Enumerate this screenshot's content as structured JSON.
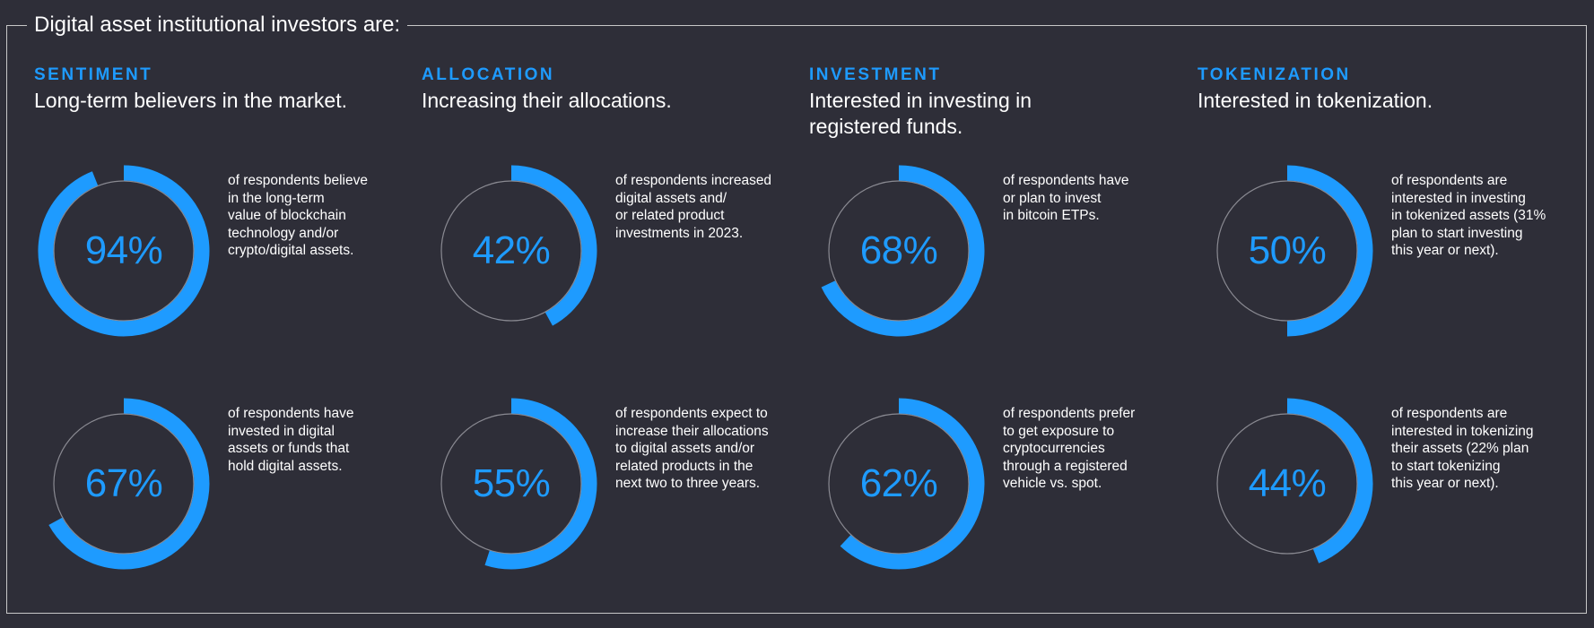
{
  "frame_title": "Digital asset institutional investors are:",
  "colors": {
    "background": "#2e2e38",
    "accent": "#1e9bff",
    "track": "#8a8a92",
    "text": "#ffffff"
  },
  "columns": [
    {
      "category": "SENTIMENT",
      "headline": "Long-term believers in the market.",
      "stats": [
        {
          "value": 94,
          "label": "94%",
          "description": "of respondents believe\nin the long-term\nvalue of blockchain\ntechnology and/or\ncrypto/digital assets."
        },
        {
          "value": 67,
          "label": "67%",
          "description": "of respondents have\ninvested in digital\nassets or funds that\nhold digital assets."
        }
      ]
    },
    {
      "category": "ALLOCATION",
      "headline": "Increasing their allocations.",
      "stats": [
        {
          "value": 42,
          "label": "42%",
          "description": "of respondents increased\ndigital assets and/\nor related product\ninvestments in 2023."
        },
        {
          "value": 55,
          "label": "55%",
          "description": "of respondents expect to\nincrease their allocations\nto digital assets and/or\nrelated products in the\nnext two to three years."
        }
      ]
    },
    {
      "category": "INVESTMENT",
      "headline": "Interested in investing in\nregistered funds.",
      "stats": [
        {
          "value": 68,
          "label": "68%",
          "description": "of respondents have\nor plan to invest\nin bitcoin ETPs."
        },
        {
          "value": 62,
          "label": "62%",
          "description": "of respondents prefer\nto get exposure to\ncryptocurrencies\nthrough a registered\nvehicle vs. spot."
        }
      ]
    },
    {
      "category": "TOKENIZATION",
      "headline": "Interested in tokenization.",
      "stats": [
        {
          "value": 50,
          "label": "50%",
          "description": "of respondents are\ninterested in investing\nin tokenized assets (31%\nplan to start investing\nthis year or next)."
        },
        {
          "value": 44,
          "label": "44%",
          "description": "of respondents are\ninterested in tokenizing\ntheir assets (22% plan\nto start tokenizing\nthis year or next)."
        }
      ]
    }
  ],
  "chart_data": {
    "type": "donut-grid",
    "title": "Digital asset institutional investors are:",
    "unit": "%",
    "categories": [
      "SENTIMENT",
      "ALLOCATION",
      "INVESTMENT",
      "TOKENIZATION"
    ],
    "series": [
      {
        "values": [
          94,
          42,
          68,
          50
        ]
      },
      {
        "values": [
          67,
          55,
          62,
          44
        ]
      }
    ]
  }
}
